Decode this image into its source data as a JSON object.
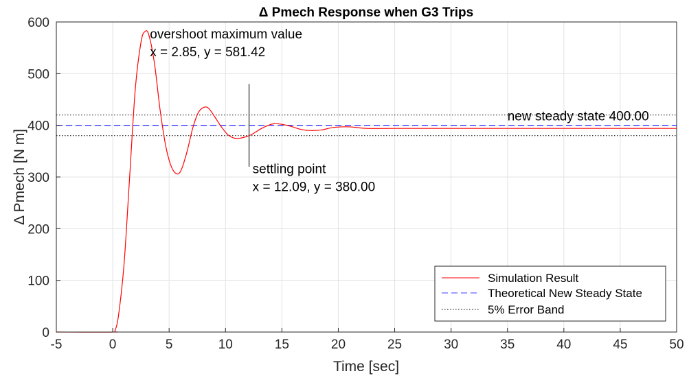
{
  "chart_data": {
    "type": "line",
    "title": "Δ Pmech Response when G3 Trips",
    "xlabel": "Time [sec]",
    "ylabel": "Δ Pmech [N m]",
    "xlim": [
      -5,
      50
    ],
    "ylim": [
      0,
      600
    ],
    "xticks": [
      -5,
      0,
      5,
      10,
      15,
      20,
      25,
      30,
      35,
      40,
      45,
      50
    ],
    "yticks": [
      0,
      100,
      200,
      300,
      400,
      500,
      600
    ],
    "grid": true,
    "legend_position": "bottom-right",
    "series": [
      {
        "name": "Simulation Result",
        "style": "solid",
        "color": "#ff0000",
        "x": [
          -5,
          0,
          0.2,
          0.5,
          1,
          1.5,
          2,
          2.5,
          2.85,
          3.2,
          3.7,
          4.2,
          4.7,
          5.2,
          5.7,
          6.1,
          6.6,
          7.1,
          7.6,
          8.1,
          8.5,
          9,
          9.6,
          10.2,
          10.8,
          11.4,
          12.1,
          12.6,
          13.2,
          13.8,
          14.3,
          15,
          15.8,
          16.7,
          17.5,
          18.5,
          19.6,
          21,
          22.5,
          25,
          30,
          40,
          50
        ],
        "y": [
          0,
          0,
          3,
          30,
          130,
          300,
          470,
          560,
          581.42,
          575,
          520,
          430,
          360,
          320,
          306,
          315,
          350,
          395,
          425,
          435,
          433,
          418,
          398,
          382,
          375,
          375.5,
          380,
          386,
          394,
          400,
          403,
          402,
          398,
          392,
          390,
          391,
          396,
          397,
          394,
          394,
          394,
          394,
          394
        ]
      },
      {
        "name": "Theoretical New Steady State",
        "style": "dashed",
        "color": "#3b3bff",
        "x": [
          -5,
          50
        ],
        "y": [
          400,
          400
        ]
      },
      {
        "name": "5% Error Band",
        "style": "dotted",
        "color": "#000000",
        "bands": [
          420,
          380
        ]
      }
    ],
    "markers": [
      {
        "type": "vline",
        "x": 12.09,
        "y_range": [
          320,
          480
        ],
        "color": "#555555"
      }
    ],
    "annotations": [
      {
        "line1": "overshoot maximum value",
        "line2": "x = 2.85, y = 581.42",
        "x": 3.3,
        "y": 581.42
      },
      {
        "line1": "settling point",
        "line2": "x = 12.09, y = 380.00",
        "x": 12.4,
        "y": 380
      },
      {
        "line1": "new steady state 400.00",
        "x": 35,
        "y": 400
      }
    ]
  }
}
